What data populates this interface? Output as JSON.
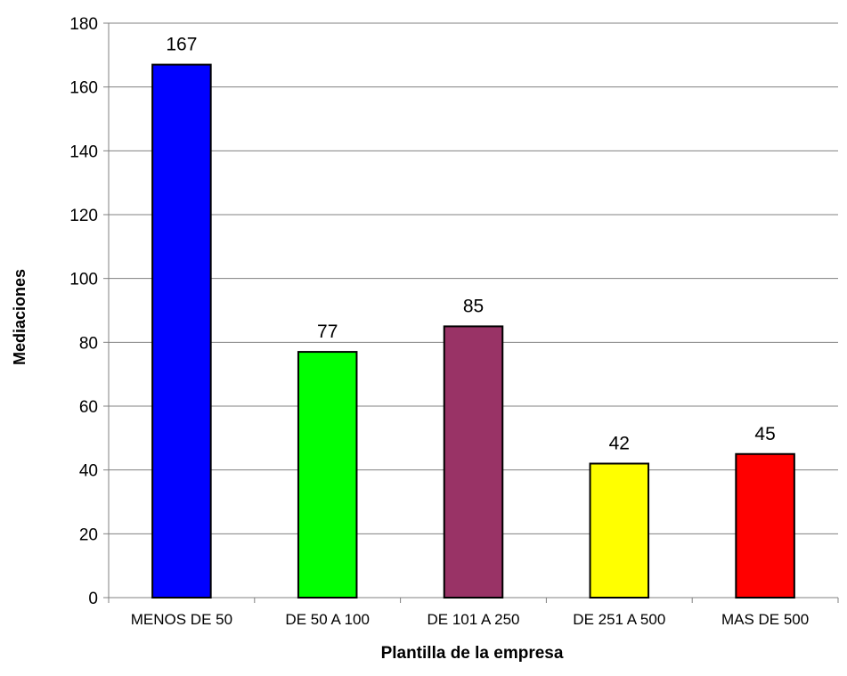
{
  "chart_data": {
    "type": "bar",
    "title": "",
    "xlabel": "Plantilla de la empresa",
    "ylabel": "Mediaciones",
    "categories": [
      "MENOS DE 50",
      "DE 50 A 100",
      "DE 101 A 250",
      "DE 251 A 500",
      "MAS DE 500"
    ],
    "values": [
      167,
      77,
      85,
      42,
      45
    ],
    "data_labels": [
      "167",
      "77",
      "85",
      "42",
      "45"
    ],
    "colors": [
      "#0000ff",
      "#00ff00",
      "#993366",
      "#ffff00",
      "#ff0000"
    ],
    "ylim": [
      0,
      180
    ],
    "yticks": [
      0,
      20,
      40,
      60,
      80,
      100,
      120,
      140,
      160,
      180
    ],
    "ytick_labels": [
      "0",
      "20",
      "40",
      "60",
      "80",
      "100",
      "120",
      "140",
      "160",
      "180"
    ],
    "grid": true,
    "legend": "none"
  }
}
